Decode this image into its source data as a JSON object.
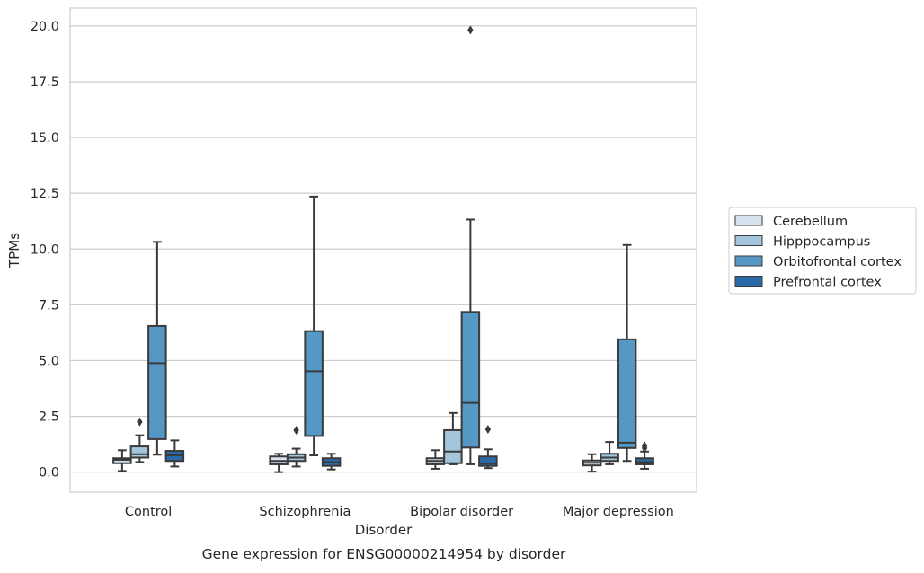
{
  "chart_data": {
    "type": "box",
    "title": "",
    "caption": "Gene expression for ENSG00000214954 by disorder",
    "xlabel": "Disorder",
    "ylabel": "TPMs",
    "ylim": [
      -0.9,
      20.8
    ],
    "yticks": [
      0.0,
      2.5,
      5.0,
      7.5,
      10.0,
      12.5,
      15.0,
      17.5,
      20.0
    ],
    "ytick_labels": [
      "0.0",
      "2.5",
      "5.0",
      "7.5",
      "10.0",
      "12.5",
      "15.0",
      "17.5",
      "20.0"
    ],
    "grid": "horizontal",
    "legend_position": "outside-right",
    "categories": [
      "Control",
      "Schizophrenia",
      "Bipolar disorder",
      "Major depression"
    ],
    "series": [
      {
        "name": "Cerebellum",
        "color": "#d6e3ef",
        "boxes": [
          {
            "whisker_low": 0.05,
            "q1": 0.4,
            "median": 0.55,
            "q3": 0.62,
            "whisker_high": 0.98,
            "outliers": []
          },
          {
            "whisker_low": 0.0,
            "q1": 0.35,
            "median": 0.5,
            "q3": 0.7,
            "whisker_high": 0.82,
            "outliers": []
          },
          {
            "whisker_low": 0.15,
            "q1": 0.35,
            "median": 0.5,
            "q3": 0.62,
            "whisker_high": 0.98,
            "outliers": []
          },
          {
            "whisker_low": 0.02,
            "q1": 0.3,
            "median": 0.42,
            "q3": 0.52,
            "whisker_high": 0.8,
            "outliers": []
          }
        ]
      },
      {
        "name": "Hipppocampus",
        "color": "#a3c6dd",
        "boxes": [
          {
            "whisker_low": 0.45,
            "q1": 0.65,
            "median": 0.8,
            "q3": 1.15,
            "whisker_high": 1.65,
            "outliers": [
              2.25
            ]
          },
          {
            "whisker_low": 0.25,
            "q1": 0.5,
            "median": 0.65,
            "q3": 0.8,
            "whisker_high": 1.05,
            "outliers": [
              1.88
            ]
          },
          {
            "whisker_low": 0.35,
            "q1": 0.4,
            "median": 0.92,
            "q3": 1.88,
            "whisker_high": 2.65,
            "outliers": []
          },
          {
            "whisker_low": 0.35,
            "q1": 0.5,
            "median": 0.65,
            "q3": 0.82,
            "whisker_high": 1.35,
            "outliers": []
          }
        ]
      },
      {
        "name": "Orbitofrontal cortex",
        "color": "#5598c5",
        "boxes": [
          {
            "whisker_low": 0.78,
            "q1": 1.48,
            "median": 4.88,
            "q3": 6.55,
            "whisker_high": 10.32,
            "outliers": []
          },
          {
            "whisker_low": 0.75,
            "q1": 1.62,
            "median": 4.52,
            "q3": 6.32,
            "whisker_high": 12.35,
            "outliers": []
          },
          {
            "whisker_low": 0.35,
            "q1": 1.1,
            "median": 3.1,
            "q3": 7.18,
            "whisker_high": 11.32,
            "outliers": [
              19.82
            ]
          },
          {
            "whisker_low": 0.5,
            "q1": 1.08,
            "median": 1.32,
            "q3": 5.95,
            "whisker_high": 10.18,
            "outliers": []
          }
        ]
      },
      {
        "name": "Prefrontal cortex",
        "color": "#2b6aa9",
        "boxes": [
          {
            "whisker_low": 0.25,
            "q1": 0.5,
            "median": 0.75,
            "q3": 0.95,
            "whisker_high": 1.42,
            "outliers": []
          },
          {
            "whisker_low": 0.12,
            "q1": 0.28,
            "median": 0.45,
            "q3": 0.62,
            "whisker_high": 0.82,
            "outliers": []
          },
          {
            "whisker_low": 0.18,
            "q1": 0.28,
            "median": 0.38,
            "q3": 0.7,
            "whisker_high": 1.02,
            "outliers": [
              1.92
            ]
          },
          {
            "whisker_low": 0.15,
            "q1": 0.35,
            "median": 0.45,
            "q3": 0.62,
            "whisker_high": 0.92,
            "outliers": [
              1.18,
              1.08
            ]
          }
        ]
      }
    ]
  }
}
